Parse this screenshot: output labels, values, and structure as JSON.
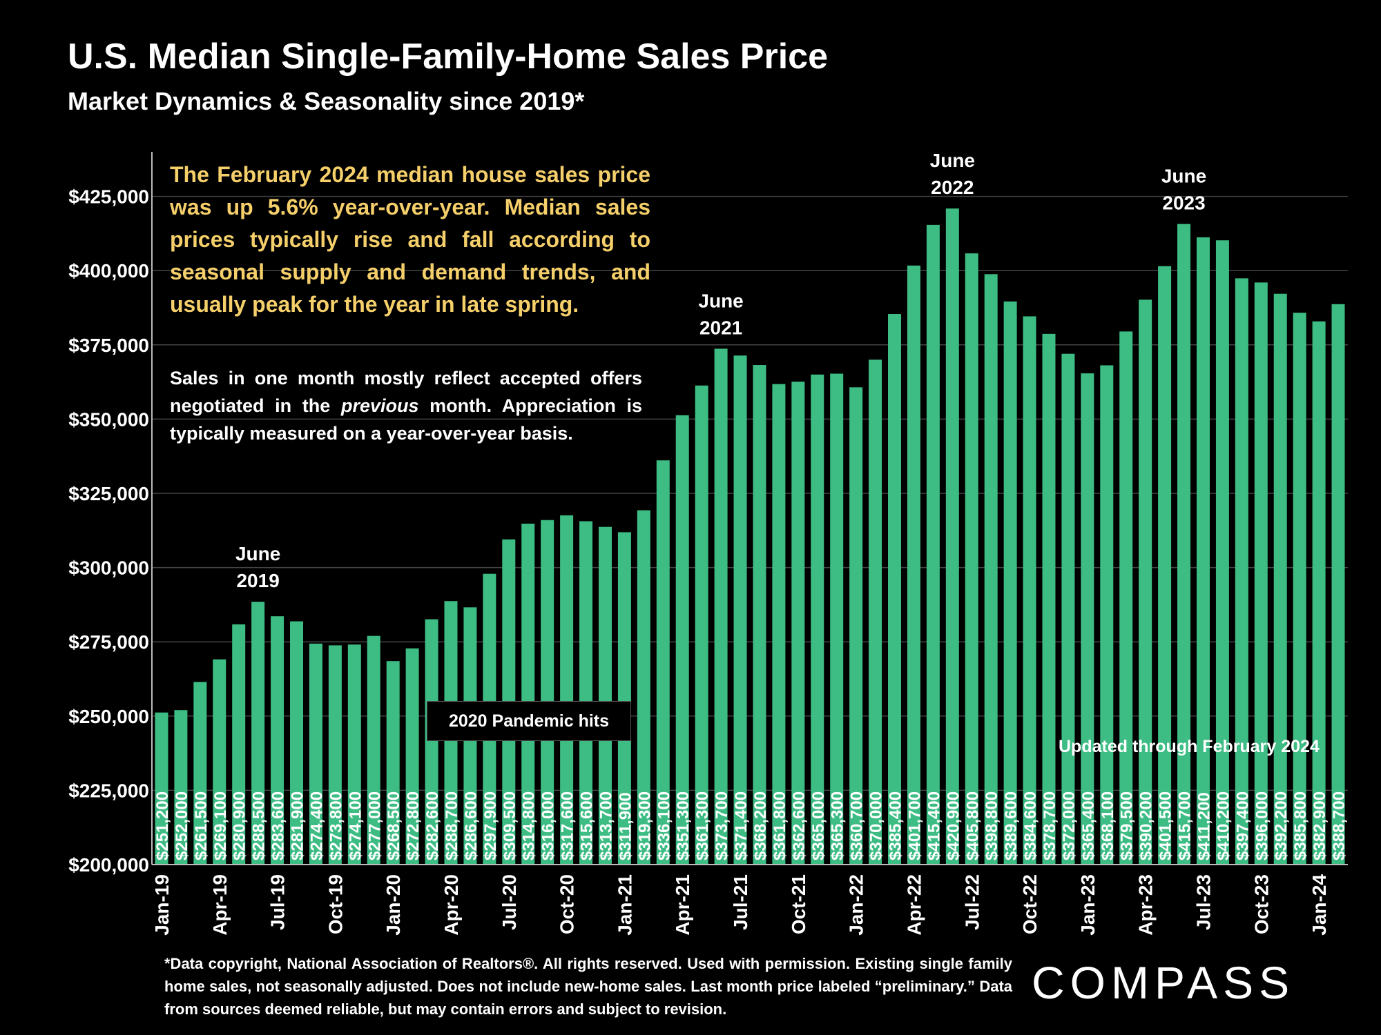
{
  "header": {
    "title": "U.S. Median Single-Family-Home Sales Price",
    "subtitle": "Market Dynamics & Seasonality since 2019*"
  },
  "notes": {
    "main": "The February 2024 median house sales price was up 5.6% year-over-year. Median sales prices typically rise and fall according to seasonal supply and demand trends, and usually peak for the year in late spring.",
    "secondary_before": "Sales in one month mostly reflect accepted offers negotiated in the ",
    "secondary_italic": "previous",
    "secondary_after": " month. Appreciation is typically measured on a year-over-year basis.",
    "pandemic": "2020 Pandemic hits",
    "updated": "Updated through February 2024"
  },
  "footnote": "*Data copyright, National Association of Realtors®. All rights reserved. Used with permission. Existing single family home sales, not seasonally adjusted. Does not include new-home sales. Last month price labeled “preliminary.” Data from sources deemed reliable, but may contain errors and subject to revision.",
  "brand": {
    "logo_text": "COMPASS"
  },
  "colors": {
    "bar": "#3dbd84",
    "yellow": "#f5cf6a",
    "background": "#000000",
    "grid": "#444444"
  },
  "chart_data": {
    "type": "bar",
    "ylim": [
      200000,
      440000
    ],
    "yticks": [
      200000,
      225000,
      250000,
      275000,
      300000,
      325000,
      350000,
      375000,
      400000,
      425000
    ],
    "ytick_labels": [
      "$200,000",
      "$225,000",
      "$250,000",
      "$275,000",
      "$300,000",
      "$325,000",
      "$350,000",
      "$375,000",
      "$400,000",
      "$425,000"
    ],
    "categories": [
      "Jan-19",
      "Feb-19",
      "Mar-19",
      "Apr-19",
      "May-19",
      "Jun-19",
      "Jul-19",
      "Aug-19",
      "Sep-19",
      "Oct-19",
      "Nov-19",
      "Dec-19",
      "Jan-20",
      "Feb-20",
      "Mar-20",
      "Apr-20",
      "May-20",
      "Jun-20",
      "Jul-20",
      "Aug-20",
      "Sep-20",
      "Oct-20",
      "Nov-20",
      "Dec-20",
      "Jan-21",
      "Feb-21",
      "Mar-21",
      "Apr-21",
      "May-21",
      "Jun-21",
      "Jul-21",
      "Aug-21",
      "Sep-21",
      "Oct-21",
      "Nov-21",
      "Dec-21",
      "Jan-22",
      "Feb-22",
      "Mar-22",
      "Apr-22",
      "May-22",
      "Jun-22",
      "Jul-22",
      "Aug-22",
      "Sep-22",
      "Oct-22",
      "Nov-22",
      "Dec-22",
      "Jan-23",
      "Feb-23",
      "Mar-23",
      "Apr-23",
      "May-23",
      "Jun-23",
      "Jul-23",
      "Aug-23",
      "Sep-23",
      "Oct-23",
      "Nov-23",
      "Dec-23",
      "Jan-24",
      "Feb-24"
    ],
    "xtick_labels_shown": [
      "Jan-19",
      "Apr-19",
      "Jul-19",
      "Oct-19",
      "Jan-20",
      "Apr-20",
      "Jul-20",
      "Oct-20",
      "Jan-21",
      "Apr-21",
      "Jul-21",
      "Oct-21",
      "Jan-22",
      "Apr-22",
      "Jul-22",
      "Oct-22",
      "Jan-23",
      "Apr-23",
      "Jul-23",
      "Oct-23",
      "Jan-24"
    ],
    "values": [
      251200,
      252000,
      261500,
      269100,
      280900,
      288500,
      283600,
      281900,
      274400,
      273800,
      274100,
      277000,
      268500,
      272800,
      282600,
      288700,
      286600,
      297900,
      309500,
      314800,
      316000,
      317600,
      315600,
      313700,
      311900,
      319300,
      336100,
      351300,
      361300,
      373700,
      371400,
      368200,
      361800,
      362600,
      365000,
      365300,
      360700,
      370000,
      385400,
      401700,
      415400,
      420900,
      405800,
      398800,
      389600,
      384600,
      378700,
      372000,
      365400,
      368100,
      379500,
      390200,
      401500,
      415700,
      411200,
      410200,
      397400,
      396000,
      392200,
      385800,
      382900,
      388700
    ],
    "data_labels": [
      "$251,200",
      "$252,000",
      "$261,500",
      "$269,100",
      "$280,900",
      "$288,500",
      "$283,600",
      "$281,900",
      "$274,400",
      "$273,800",
      "$274,100",
      "$277,000",
      "$268,500",
      "$272,800",
      "$282,600",
      "$288,700",
      "$286,600",
      "$297,900",
      "$309,500",
      "$314,800",
      "$316,000",
      "$317,600",
      "$315,600",
      "$313,700",
      "$311,900",
      "$319,300",
      "$336,100",
      "$351,300",
      "$361,300",
      "$373,700",
      "$371,400",
      "$368,200",
      "$361,800",
      "$362,600",
      "$365,000",
      "$365,300",
      "$360,700",
      "$370,000",
      "$385,400",
      "$401,700",
      "$415,400",
      "$420,900",
      "$405,800",
      "$398,800",
      "$389,600",
      "$384,600",
      "$378,700",
      "$372,000",
      "$365,400",
      "$368,100",
      "$379,500",
      "$390,200",
      "$401,500",
      "$415,700",
      "$411,200",
      "$410,200",
      "$397,400",
      "$396,000",
      "$392,200",
      "$385,800",
      "$382,900",
      "$388,700"
    ],
    "annotations": [
      {
        "index": 5,
        "line1": "June",
        "line2": "2019"
      },
      {
        "index": 29,
        "line1": "June",
        "line2": "2021"
      },
      {
        "index": 41,
        "line1": "June",
        "line2": "2022"
      },
      {
        "index": 53,
        "line1": "June",
        "line2": "2023"
      }
    ],
    "grid": true
  }
}
